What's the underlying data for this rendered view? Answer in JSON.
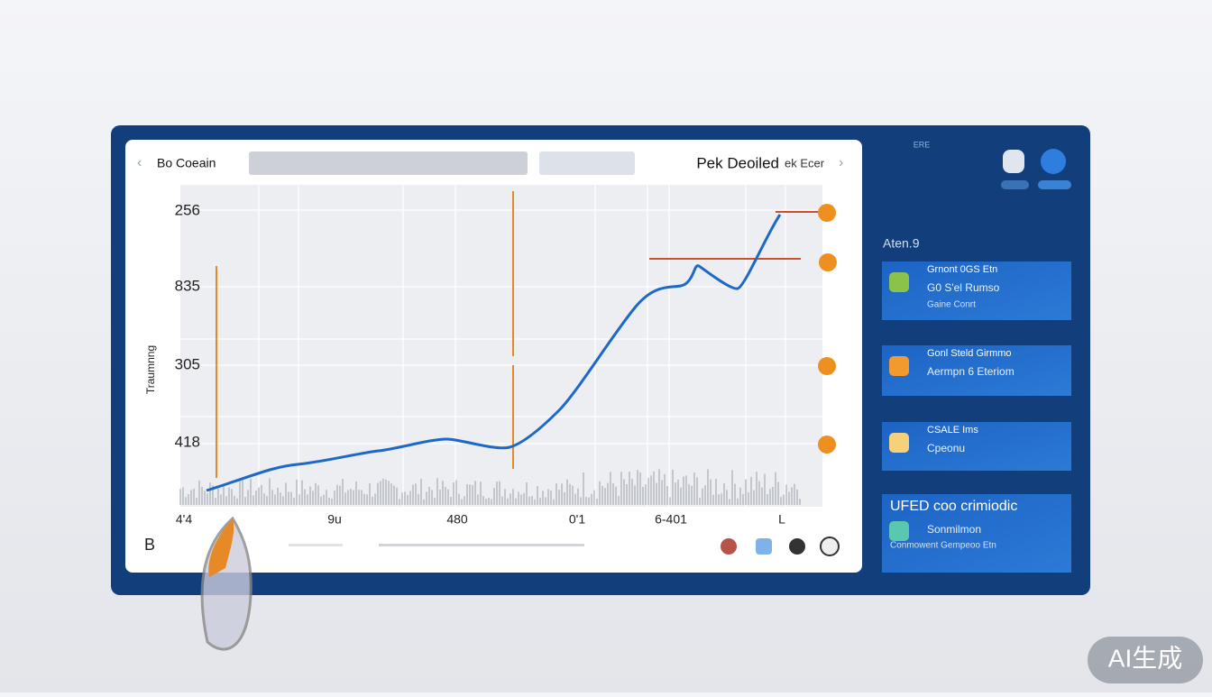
{
  "header": {
    "title": "Bo Coeain",
    "right_title": "Pek Deoiled",
    "right_tag": "ek Ecer"
  },
  "chart": {
    "y_axis_title": "Traumnng",
    "y_labels": [
      "256",
      "835",
      "305",
      "418"
    ],
    "x_labels": [
      "4'4",
      "9u",
      "480",
      "0'1",
      "6-401",
      "L"
    ]
  },
  "footer": {
    "label": "B"
  },
  "sidebar": {
    "top_label": "ERE",
    "heading": "Aten.9",
    "cards": [
      {
        "title": "Grnont 0GS Etn",
        "line": "G0 S'el Rumso",
        "sub": "Gaine Conrt"
      },
      {
        "title": "Gonl Steld Girmmo",
        "line": "Aermpn 6 Eteriom"
      },
      {
        "title": "CSALE Ims",
        "line": "Cpeonu"
      },
      {
        "title": "UFED coo crimiodic",
        "line": "Sonmilmon",
        "sub": "Conmowent Gempeoo Etn"
      }
    ]
  },
  "watermark": "AI生成"
}
